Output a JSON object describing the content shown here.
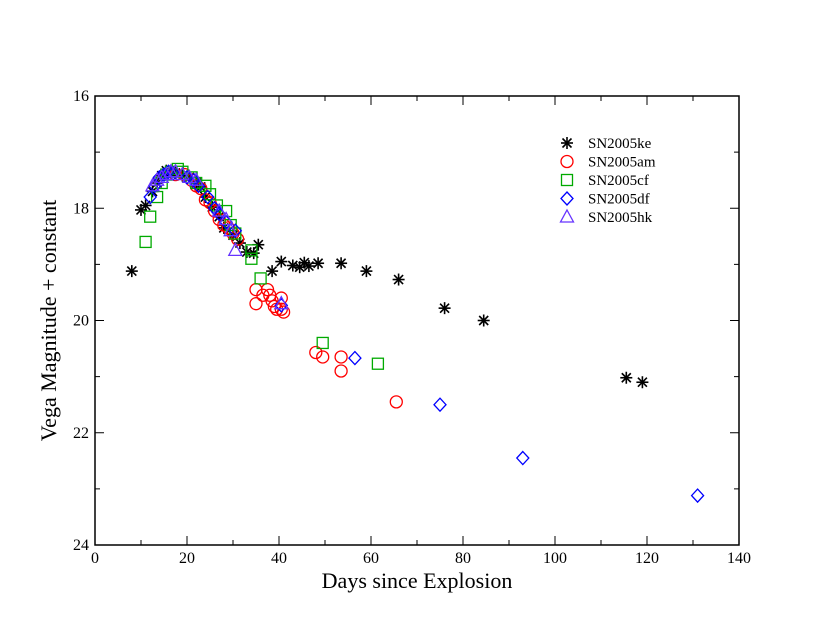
{
  "chart_data": {
    "type": "scatter",
    "title": "",
    "xlabel": "Days since Explosion",
    "ylabel": "Vega Magnitude + constant",
    "xlim": [
      0,
      140
    ],
    "ylim": [
      16,
      24
    ],
    "y_inverted": true,
    "grid": false,
    "legend_position": "top-right",
    "x_ticks": [
      0,
      20,
      40,
      60,
      80,
      100,
      120,
      140
    ],
    "y_ticks": [
      16,
      18,
      20,
      22,
      24
    ],
    "x_tick_labels": [
      "0",
      "20",
      "40",
      "60",
      "80",
      "100",
      "120",
      "140"
    ],
    "y_tick_labels": [
      "16",
      "18",
      "20",
      "22",
      "24"
    ],
    "series": [
      {
        "name": "SN2005ke",
        "marker": "asterisk",
        "color": "#000000",
        "points": [
          [
            8.0,
            19.12
          ],
          [
            10.0,
            18.03
          ],
          [
            11.0,
            17.95
          ],
          [
            12.5,
            17.7
          ],
          [
            13.5,
            17.55
          ],
          [
            14.5,
            17.42
          ],
          [
            15.5,
            17.33
          ],
          [
            16.5,
            17.36
          ],
          [
            17.5,
            17.37
          ],
          [
            19.0,
            17.42
          ],
          [
            20.5,
            17.45
          ],
          [
            22.0,
            17.55
          ],
          [
            23.0,
            17.62
          ],
          [
            24.0,
            17.8
          ],
          [
            25.5,
            17.98
          ],
          [
            27.0,
            18.15
          ],
          [
            28.0,
            18.35
          ],
          [
            30.0,
            18.48
          ],
          [
            31.5,
            18.62
          ],
          [
            33.0,
            18.78
          ],
          [
            34.5,
            18.8
          ],
          [
            35.5,
            18.65
          ],
          [
            38.5,
            19.12
          ],
          [
            40.5,
            18.95
          ],
          [
            43.0,
            19.02
          ],
          [
            44.5,
            19.05
          ],
          [
            45.5,
            18.97
          ],
          [
            46.5,
            19.03
          ],
          [
            48.5,
            18.98
          ],
          [
            53.5,
            18.98
          ],
          [
            59.0,
            19.12
          ],
          [
            66.0,
            19.27
          ],
          [
            76.0,
            19.78
          ],
          [
            84.5,
            20.0
          ],
          [
            115.5,
            21.02
          ],
          [
            119.0,
            21.1
          ]
        ]
      },
      {
        "name": "SN2005am",
        "marker": "circle",
        "color": "#ff0000",
        "points": [
          [
            17.5,
            17.4
          ],
          [
            19.5,
            17.4
          ],
          [
            21.0,
            17.5
          ],
          [
            22.0,
            17.6
          ],
          [
            23.0,
            17.65
          ],
          [
            24.0,
            17.85
          ],
          [
            25.0,
            17.9
          ],
          [
            26.0,
            18.05
          ],
          [
            27.0,
            18.2
          ],
          [
            28.0,
            18.3
          ],
          [
            29.0,
            18.35
          ],
          [
            30.0,
            18.45
          ],
          [
            31.0,
            18.55
          ],
          [
            35.0,
            19.45
          ],
          [
            35.0,
            19.7
          ],
          [
            36.5,
            19.55
          ],
          [
            37.5,
            19.45
          ],
          [
            38.0,
            19.55
          ],
          [
            38.5,
            19.65
          ],
          [
            39.0,
            19.75
          ],
          [
            39.5,
            19.8
          ],
          [
            40.5,
            19.6
          ],
          [
            40.5,
            19.8
          ],
          [
            41.0,
            19.85
          ],
          [
            48.0,
            20.57
          ],
          [
            49.5,
            20.65
          ],
          [
            53.5,
            20.65
          ],
          [
            53.5,
            20.9
          ],
          [
            65.5,
            21.45
          ]
        ]
      },
      {
        "name": "SN2005cf",
        "marker": "square",
        "color": "#00aa00",
        "points": [
          [
            11.0,
            18.6
          ],
          [
            12.0,
            18.15
          ],
          [
            13.5,
            17.8
          ],
          [
            14.5,
            17.55
          ],
          [
            15.5,
            17.4
          ],
          [
            16.5,
            17.35
          ],
          [
            18.0,
            17.3
          ],
          [
            19.0,
            17.35
          ],
          [
            21.0,
            17.45
          ],
          [
            22.0,
            17.55
          ],
          [
            24.0,
            17.6
          ],
          [
            25.0,
            17.75
          ],
          [
            26.5,
            17.95
          ],
          [
            28.5,
            18.05
          ],
          [
            29.5,
            18.3
          ],
          [
            30.5,
            18.45
          ],
          [
            34.0,
            18.75
          ],
          [
            34.0,
            18.9
          ],
          [
            36.0,
            19.25
          ],
          [
            49.5,
            20.4
          ],
          [
            61.5,
            20.77
          ]
        ]
      },
      {
        "name": "SN2005df",
        "marker": "diamond",
        "color": "#0000ff",
        "points": [
          [
            12.0,
            17.8
          ],
          [
            13.0,
            17.6
          ],
          [
            14.0,
            17.45
          ],
          [
            15.0,
            17.4
          ],
          [
            16.0,
            17.35
          ],
          [
            17.0,
            17.38
          ],
          [
            20.0,
            17.45
          ],
          [
            21.5,
            17.5
          ],
          [
            22.5,
            17.6
          ],
          [
            24.5,
            17.8
          ],
          [
            26.0,
            18.0
          ],
          [
            27.0,
            18.1
          ],
          [
            28.5,
            18.25
          ],
          [
            30.5,
            18.4
          ],
          [
            40.5,
            19.73
          ],
          [
            56.5,
            20.67
          ],
          [
            75.0,
            21.5
          ],
          [
            93.0,
            22.45
          ],
          [
            131.0,
            23.12
          ]
        ]
      },
      {
        "name": "SN2005hk",
        "marker": "triangle",
        "color": "#6633ff",
        "points": [
          [
            12.5,
            17.6
          ],
          [
            13.5,
            17.5
          ],
          [
            14.5,
            17.45
          ],
          [
            15.5,
            17.4
          ],
          [
            16.5,
            17.35
          ],
          [
            17.5,
            17.35
          ],
          [
            19.0,
            17.4
          ],
          [
            20.5,
            17.45
          ],
          [
            22.0,
            17.5
          ],
          [
            27.0,
            18.05
          ],
          [
            28.5,
            18.2
          ],
          [
            29.5,
            18.4
          ],
          [
            30.5,
            18.75
          ],
          [
            40.5,
            19.7
          ]
        ]
      }
    ]
  }
}
